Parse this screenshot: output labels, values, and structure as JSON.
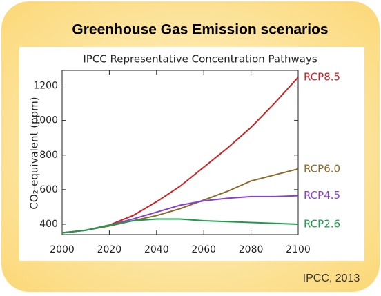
{
  "chart_data": {
    "type": "line",
    "title": "Greenhouse Gas Emission scenarios",
    "subtitle": "IPCC Representative Concentration Pathways",
    "y_label": "CO₂-equivalent (ppm)",
    "source": "IPCC, 2013",
    "x": [
      2000,
      2010,
      2020,
      2030,
      2040,
      2050,
      2060,
      2070,
      2080,
      2090,
      2100
    ],
    "series": [
      {
        "name": "RCP8.5",
        "color": "#cc2222",
        "values": [
          350,
          365,
          395,
          450,
          530,
          620,
          730,
          840,
          960,
          1100,
          1250
        ]
      },
      {
        "name": "RCP6.0",
        "color": "#8b6a2a",
        "values": [
          350,
          365,
          390,
          420,
          450,
          490,
          540,
          590,
          650,
          685,
          720
        ]
      },
      {
        "name": "RCP4.5",
        "color": "#8a3fd0",
        "values": [
          350,
          365,
          395,
          430,
          470,
          510,
          535,
          550,
          560,
          560,
          565
        ]
      },
      {
        "name": "RCP2.6",
        "color": "#1e9a4a",
        "values": [
          350,
          365,
          395,
          420,
          430,
          430,
          420,
          415,
          410,
          405,
          400
        ]
      }
    ],
    "xlim": [
      2000,
      2100
    ],
    "xticks": [
      2000,
      2020,
      2040,
      2060,
      2080,
      2100
    ],
    "ylim": [
      340,
      1290
    ],
    "yticks": [
      400,
      600,
      800,
      1000,
      1200
    ]
  }
}
